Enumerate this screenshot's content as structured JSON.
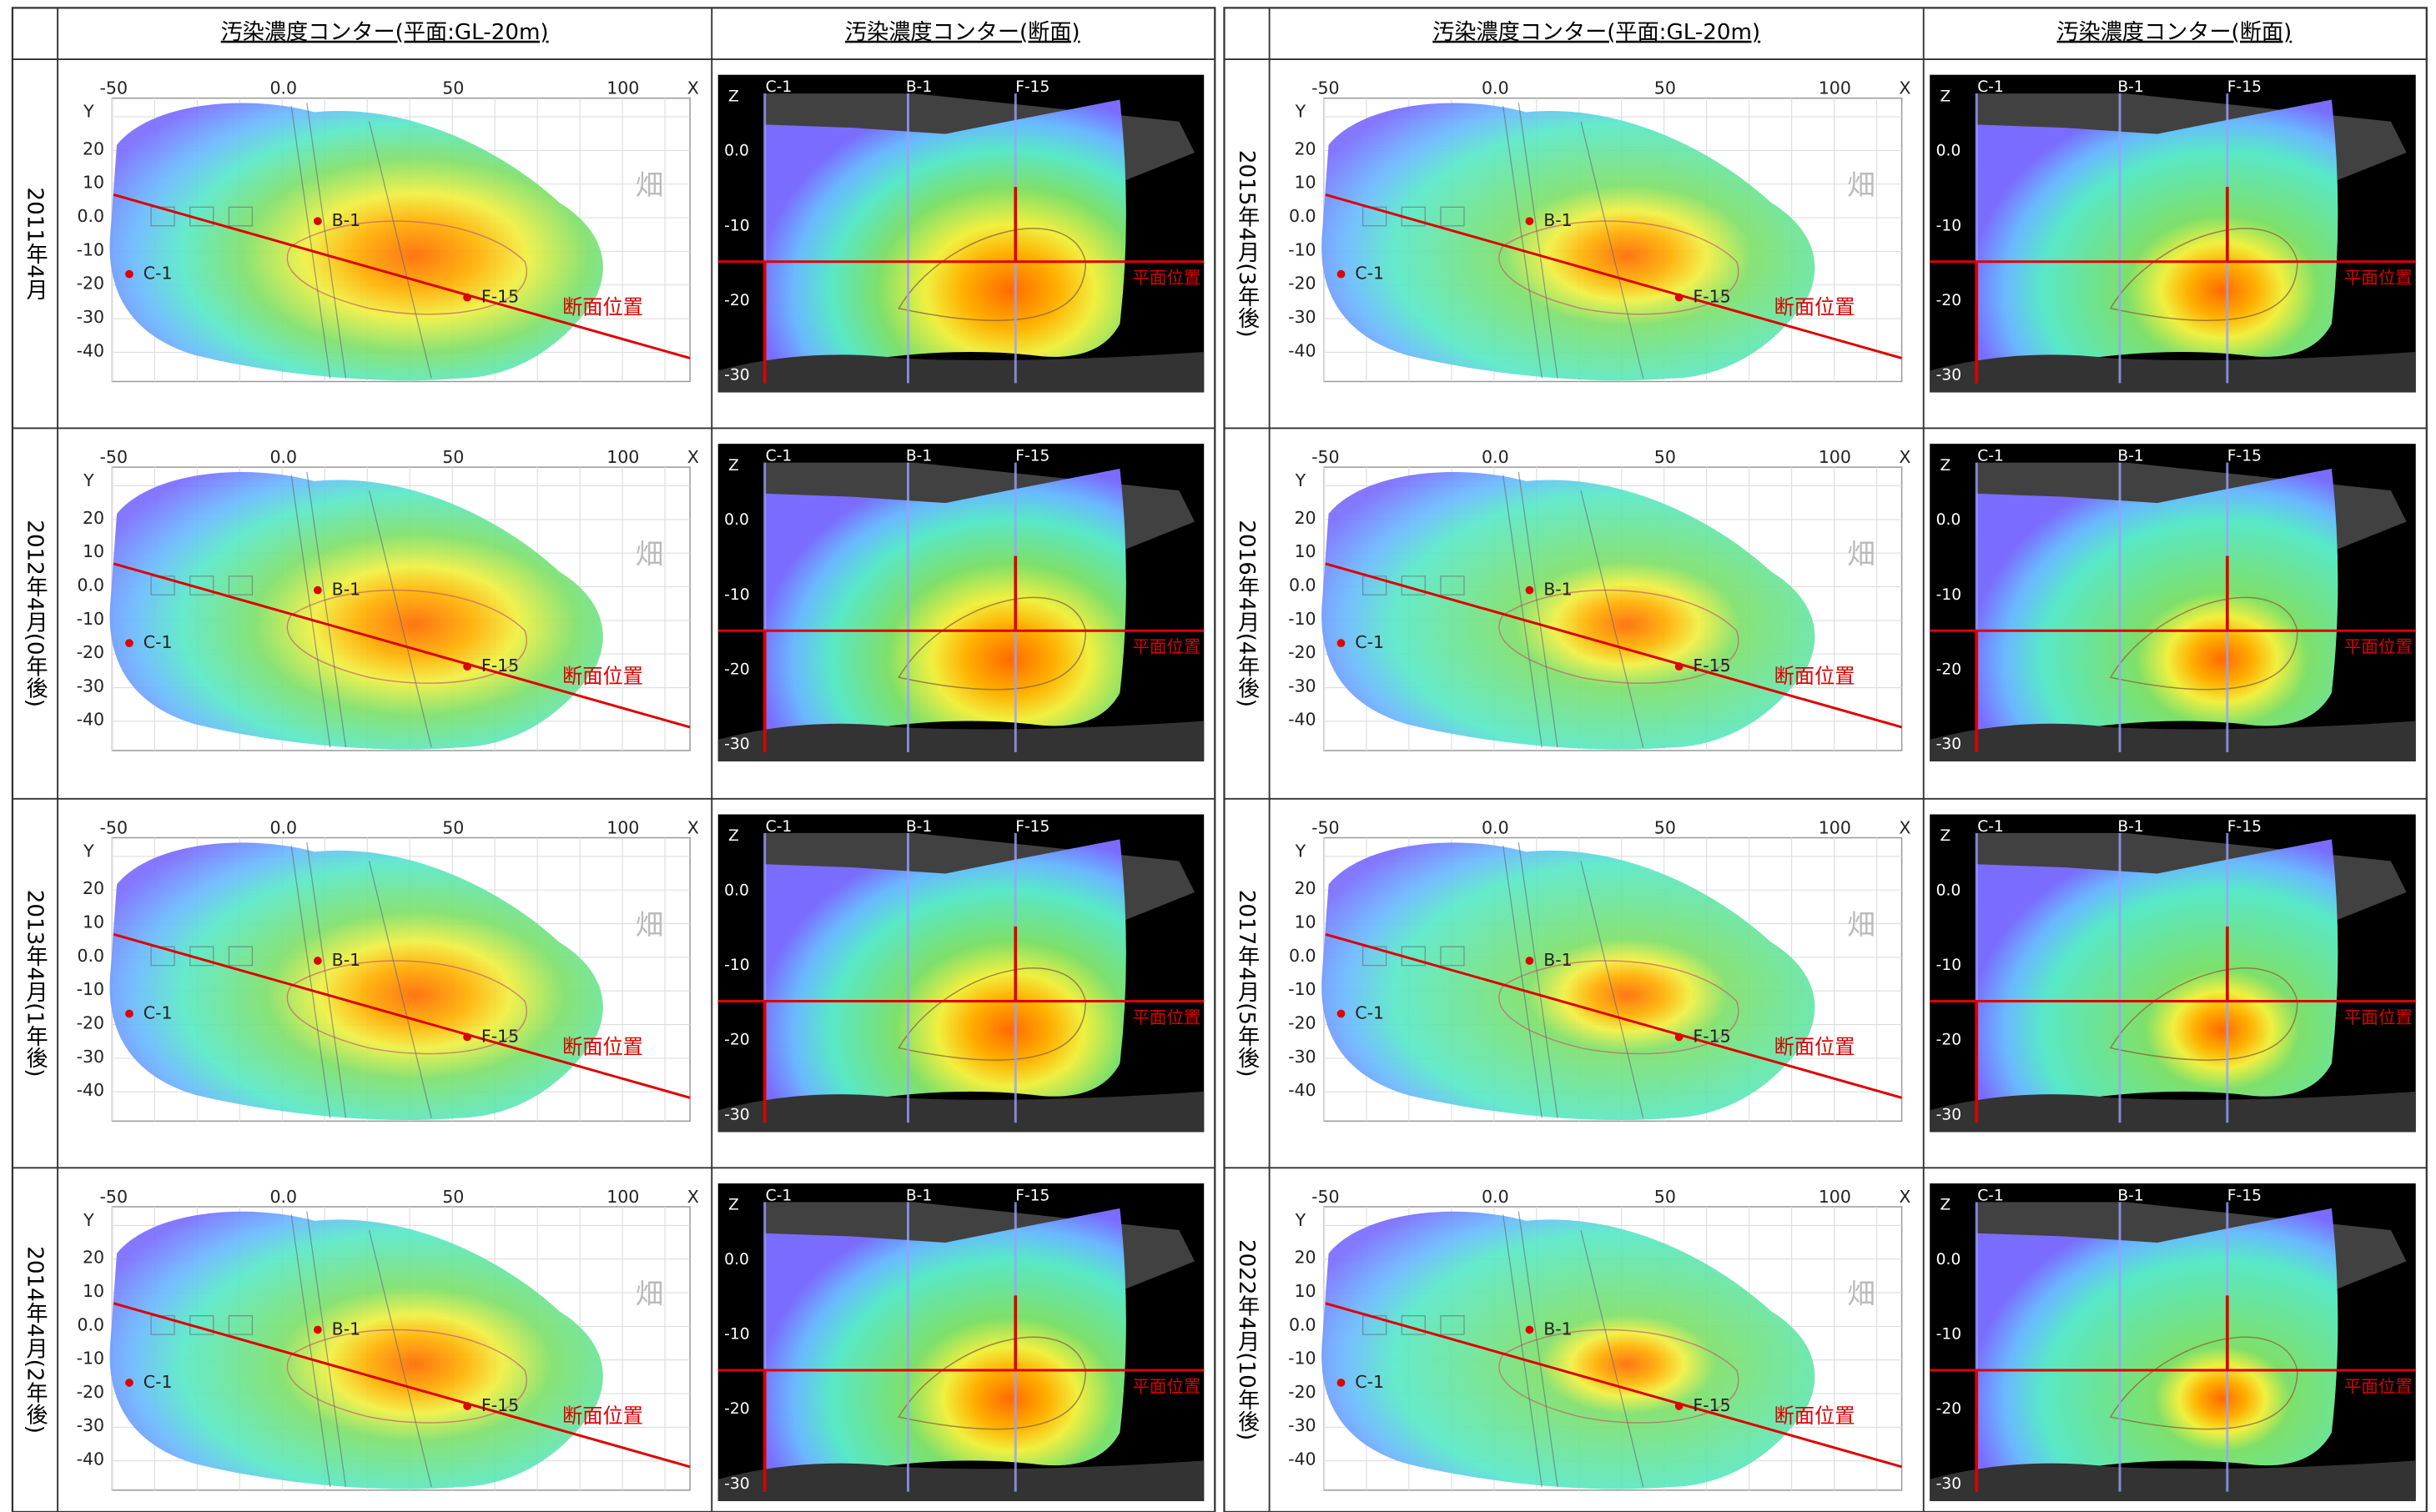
{
  "headers": {
    "plan": "汚染濃度コンター(平面:GL-20m)",
    "section": "汚染濃度コンター(断面)"
  },
  "panels": [
    {
      "label": "2011年4月"
    },
    {
      "label": "2012年4月(0年後)"
    },
    {
      "label": "2013年4月(1年後)"
    },
    {
      "label": "2014年4月(2年後)"
    },
    {
      "label": "2015年4月(3年後)"
    },
    {
      "label": "2016年4月(4年後)"
    },
    {
      "label": "2017年4月(5年後)"
    },
    {
      "label": "2022年4月(10年後)"
    }
  ],
  "plan_axes": {
    "x_ticks": [
      "-50",
      "0.0",
      "50",
      "100"
    ],
    "x_name": "X",
    "y_name": "Y",
    "y_ticks": [
      "20",
      "10",
      "0.0",
      "-10",
      "-20",
      "-30",
      "-40"
    ],
    "wells": [
      "B-1",
      "C-1",
      "F-15"
    ],
    "line_label": "断面位置",
    "map_label": "畑"
  },
  "section_axes": {
    "z_name": "Z",
    "z_ticks": [
      "0.0",
      "-10",
      "-20",
      "-30"
    ],
    "wells": [
      "C-1",
      "B-1",
      "F-15"
    ],
    "line_label": "平面位置"
  }
}
